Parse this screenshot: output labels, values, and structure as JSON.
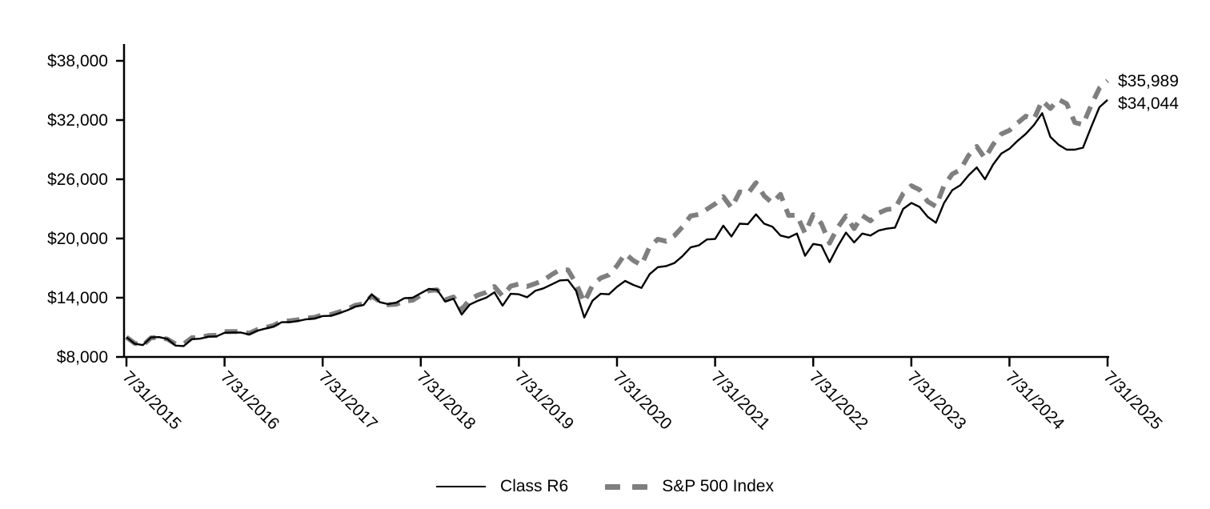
{
  "chart_data": {
    "type": "line",
    "title": "",
    "frequency": "monthly",
    "x_tick_labels": [
      "7/31/2015",
      "7/31/2016",
      "7/31/2017",
      "7/31/2018",
      "7/31/2019",
      "7/31/2020",
      "7/31/2021",
      "7/31/2022",
      "7/31/2023",
      "7/31/2024",
      "7/31/2025"
    ],
    "y_tick_labels": [
      "$8,000",
      "$14,000",
      "$20,000",
      "$26,000",
      "$32,000",
      "$38,000"
    ],
    "ylim": [
      8000,
      38000
    ],
    "y_tick_step": 6000,
    "grid": "off",
    "legend_position": "bottom",
    "series": [
      {
        "name": "Class R6",
        "style": "solid",
        "color": "#000000",
        "end_label": "$34,044",
        "final_value": 34044,
        "values": [
          10000,
          9350,
          9200,
          9980,
          10010,
          9820,
          9150,
          9100,
          9800,
          9850,
          10050,
          10080,
          10450,
          10470,
          10470,
          10280,
          10660,
          10870,
          11080,
          11520,
          11530,
          11650,
          11820,
          11890,
          12140,
          12170,
          12430,
          12720,
          13110,
          13260,
          14350,
          13550,
          13350,
          13500,
          13950,
          14000,
          14450,
          14900,
          14800,
          13600,
          13900,
          12300,
          13300,
          13700,
          14000,
          14550,
          13200,
          14400,
          14350,
          14050,
          14700,
          14950,
          15350,
          15750,
          15800,
          14700,
          12000,
          13700,
          14400,
          14350,
          15100,
          15700,
          15300,
          15000,
          16400,
          17100,
          17200,
          17500,
          18200,
          19100,
          19300,
          19900,
          19950,
          21300,
          20200,
          21500,
          21450,
          22450,
          21500,
          21200,
          20300,
          20100,
          20500,
          18250,
          19450,
          19300,
          17600,
          19200,
          20600,
          19600,
          20500,
          20300,
          20800,
          21000,
          21100,
          23000,
          23600,
          23200,
          22200,
          21600,
          23600,
          24900,
          25400,
          26400,
          27200,
          26000,
          27500,
          28600,
          29100,
          29900,
          30600,
          31500,
          32700,
          30300,
          29500,
          29000,
          29000,
          29200,
          31300,
          33300,
          34044
        ]
      },
      {
        "name": "S&P 500 Index",
        "style": "dashed",
        "color": "#7f7f7f",
        "end_label": "$35,989",
        "final_value": 35989,
        "values": [
          10000,
          9397,
          9165,
          9939,
          9969,
          9811,
          9324,
          9312,
          9943,
          9982,
          10162,
          10188,
          10564,
          10579,
          10581,
          10388,
          10773,
          10986,
          11195,
          11639,
          11653,
          11773,
          11939,
          12013,
          12261,
          12299,
          12552,
          12845,
          13239,
          13386,
          14153,
          13631,
          13285,
          13335,
          13656,
          13741,
          14252,
          14717,
          14801,
          13789,
          14070,
          12799,
          13824,
          14268,
          14545,
          15134,
          14173,
          15172,
          15390,
          15147,
          15430,
          15765,
          16337,
          16830,
          16823,
          15439,
          13532,
          15267,
          15994,
          16312,
          17232,
          18471,
          17769,
          17296,
          19190,
          19927,
          19726,
          20270,
          21158,
          22288,
          22444,
          22967,
          23514,
          24229,
          23102,
          24721,
          24550,
          25650,
          24324,
          23597,
          24472,
          22338,
          22378,
          20532,
          22425,
          21510,
          19529,
          21111,
          22291,
          21007,
          22326,
          21781,
          22580,
          22932,
          23031,
          24553,
          25341,
          24938,
          23748,
          23249,
          25372,
          26524,
          26970,
          28410,
          29325,
          28128,
          29523,
          30583,
          30956,
          31708,
          32387,
          32092,
          33976,
          33167,
          34089,
          33646,
          31752,
          31536,
          33520,
          35226,
          35989
        ]
      }
    ]
  },
  "colors": {
    "background": "#ffffff",
    "axis": "#000000",
    "class_r6_line": "#000000",
    "sp500_line": "#7f7f7f",
    "text": "#000000"
  }
}
